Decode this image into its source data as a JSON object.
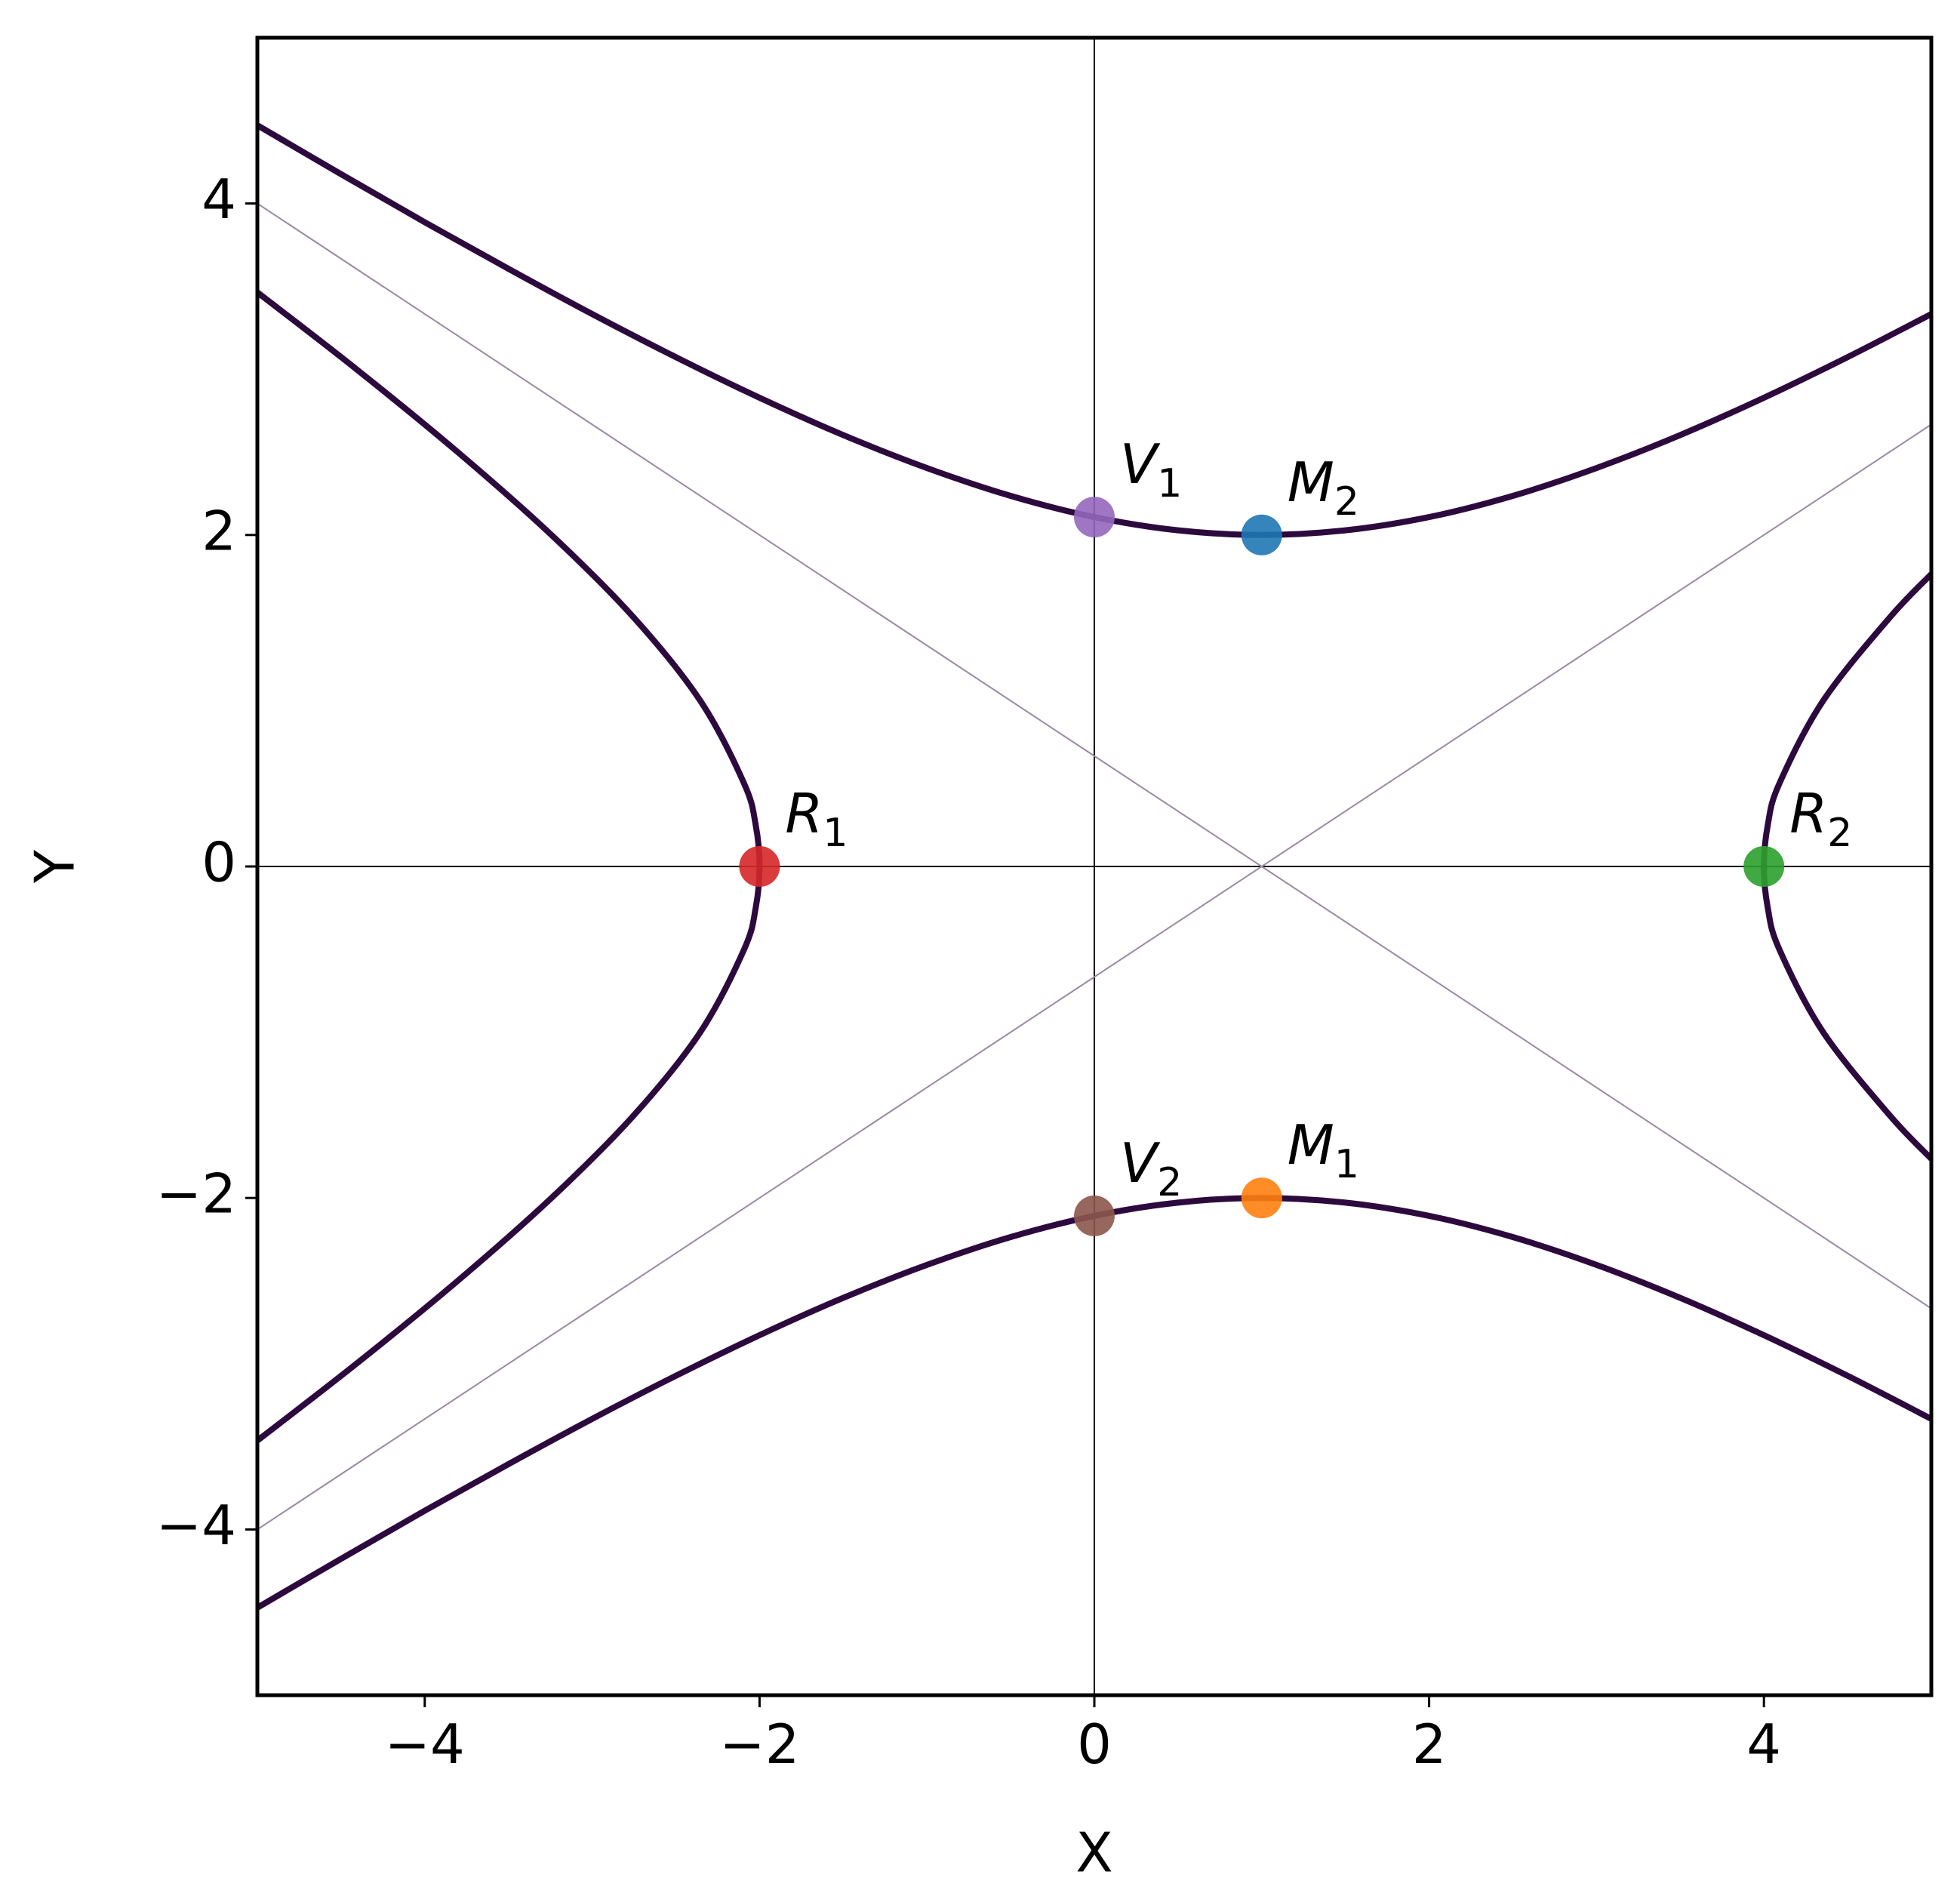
{
  "chart_data": {
    "type": "line",
    "xlabel": "X",
    "ylabel": "Y",
    "xlim": [
      -5,
      5
    ],
    "ylim": [
      -5,
      5
    ],
    "xticks": [
      {
        "value": -4,
        "label": "−4"
      },
      {
        "value": -2,
        "label": "−2"
      },
      0,
      2,
      4
    ],
    "yticks": [
      {
        "value": -4,
        "label": "−4"
      },
      {
        "value": -2,
        "label": "−2"
      },
      0,
      2,
      4
    ],
    "axis_lines": true,
    "series": [
      {
        "color": "#2d0a3e",
        "width": 8,
        "x": [
          -5,
          -4.5,
          -4,
          -3.5,
          -3,
          -2.5,
          -2,
          -1.5,
          -1,
          -0.5,
          0,
          0.5,
          1,
          1.5,
          2,
          2.5,
          3,
          3.5,
          4,
          4.5,
          5
        ],
        "values": [
          4.472,
          4.177,
          3.887,
          3.606,
          3.333,
          3.073,
          2.828,
          2.603,
          2.404,
          2.236,
          2.108,
          2.028,
          2,
          2.028,
          2.108,
          2.236,
          2.404,
          2.603,
          2.828,
          3.073,
          3.333
        ]
      },
      {
        "color": "#2d0a3e",
        "width": 8,
        "x": [
          -5,
          -4.5,
          -4,
          -3.5,
          -3,
          -2.5,
          -2,
          -1.5,
          -1,
          -0.5,
          0,
          0.5,
          1,
          1.5,
          2,
          2.5,
          3,
          3.5,
          4,
          4.5,
          5
        ],
        "values": [
          -4.472,
          -4.177,
          -3.887,
          -3.606,
          -3.333,
          -3.073,
          -2.828,
          -2.603,
          -2.404,
          -2.236,
          -2.108,
          -2.028,
          -2,
          -2.028,
          -2.108,
          -2.236,
          -2.404,
          -2.603,
          -2.828,
          -3.073,
          -3.333
        ]
      },
      {
        "color": "#2d0a3e",
        "width": 8,
        "x": [
          -5,
          -4.408,
          -3.803,
          -3.243,
          -2.75,
          -2.354,
          -2.092,
          -2.023,
          -2,
          -2.023,
          -2.092,
          -2.354,
          -2.75,
          -3.243,
          -3.803,
          -4.408,
          -5
        ],
        "values": [
          3.464,
          3,
          2.5,
          2,
          1.5,
          1,
          0.5,
          0.25,
          0,
          -0.25,
          -0.5,
          -1,
          -1.5,
          -2,
          -2.5,
          -3,
          -3.464
        ]
      },
      {
        "color": "#2d0a3e",
        "width": 8,
        "x": [
          5,
          4.75,
          4.354,
          4.092,
          4.023,
          4,
          4.023,
          4.092,
          4.354,
          4.75,
          5
        ],
        "values": [
          1.764,
          1.5,
          1,
          0.5,
          0.25,
          0,
          -0.25,
          -0.5,
          -1,
          -1.5,
          -1.764
        ]
      },
      {
        "color": "#9a8aa0",
        "width": 2,
        "x": [
          -5,
          5
        ],
        "values": [
          4,
          -2.667
        ]
      },
      {
        "color": "#9a8aa0",
        "width": 2,
        "x": [
          -5,
          5
        ],
        "values": [
          -4,
          2.667
        ]
      }
    ],
    "points": [
      {
        "label": "V",
        "sub": "1",
        "x": 0,
        "y": 2.108,
        "color": "#9467bd"
      },
      {
        "label": "M",
        "sub": "2",
        "x": 1,
        "y": 2,
        "color": "#1f77b4"
      },
      {
        "label": "R",
        "sub": "1",
        "x": -2,
        "y": 0,
        "color": "#d62728"
      },
      {
        "label": "R",
        "sub": "2",
        "x": 4,
        "y": 0,
        "color": "#2ca02c"
      },
      {
        "label": "V",
        "sub": "2",
        "x": 0,
        "y": -2.108,
        "color": "#8c564b"
      },
      {
        "label": "M",
        "sub": "1",
        "x": 1,
        "y": -2,
        "color": "#ff7f0e"
      }
    ]
  }
}
